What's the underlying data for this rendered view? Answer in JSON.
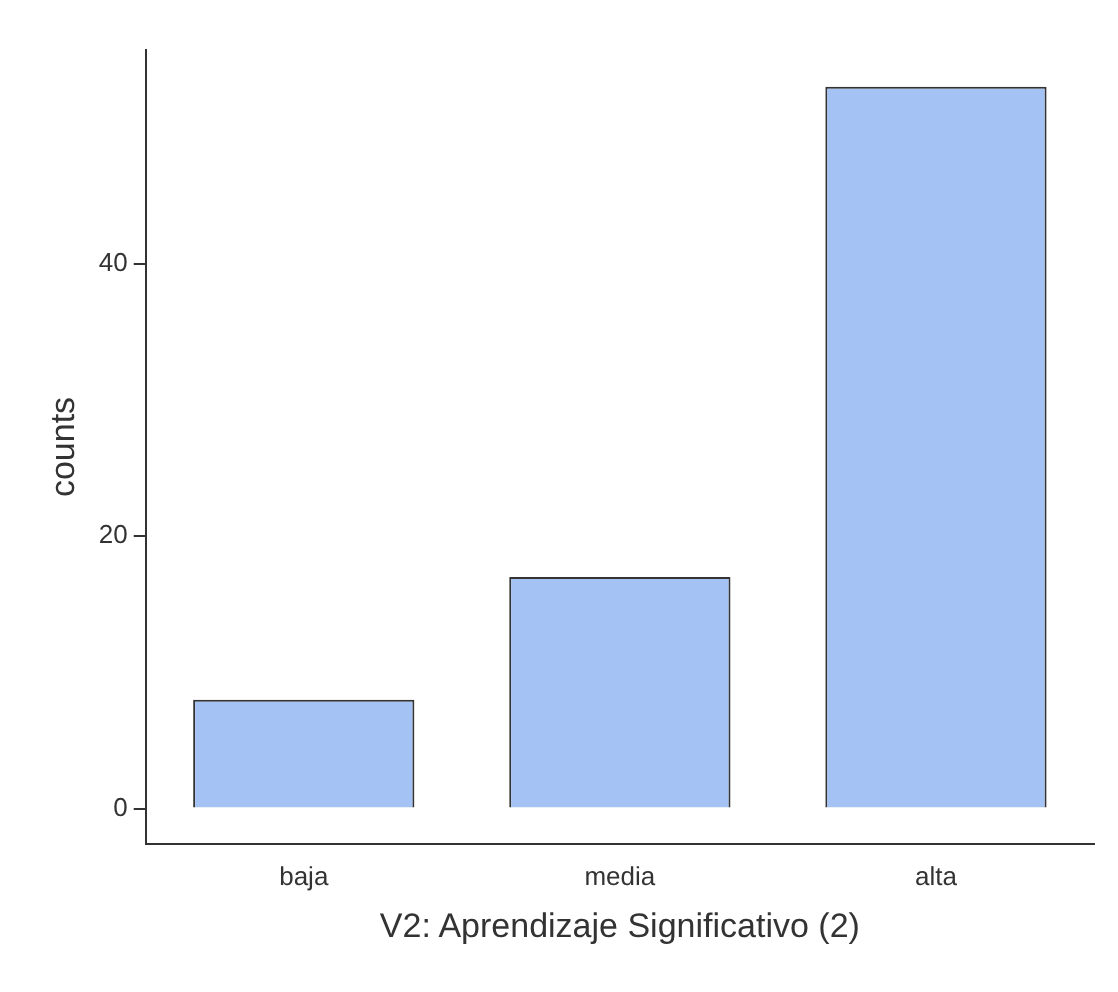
{
  "chart_data": {
    "type": "bar",
    "xlabel": "V2: Aprendizaje Significativo (2)",
    "ylabel": "counts",
    "categories": [
      "baja",
      "media",
      "alta"
    ],
    "values": [
      8,
      17,
      53
    ],
    "color": "#a4c2f4",
    "ylim": [
      -2.6,
      55.7
    ],
    "yticks": [
      0,
      20,
      40
    ],
    "grid": false,
    "legend": false
  }
}
